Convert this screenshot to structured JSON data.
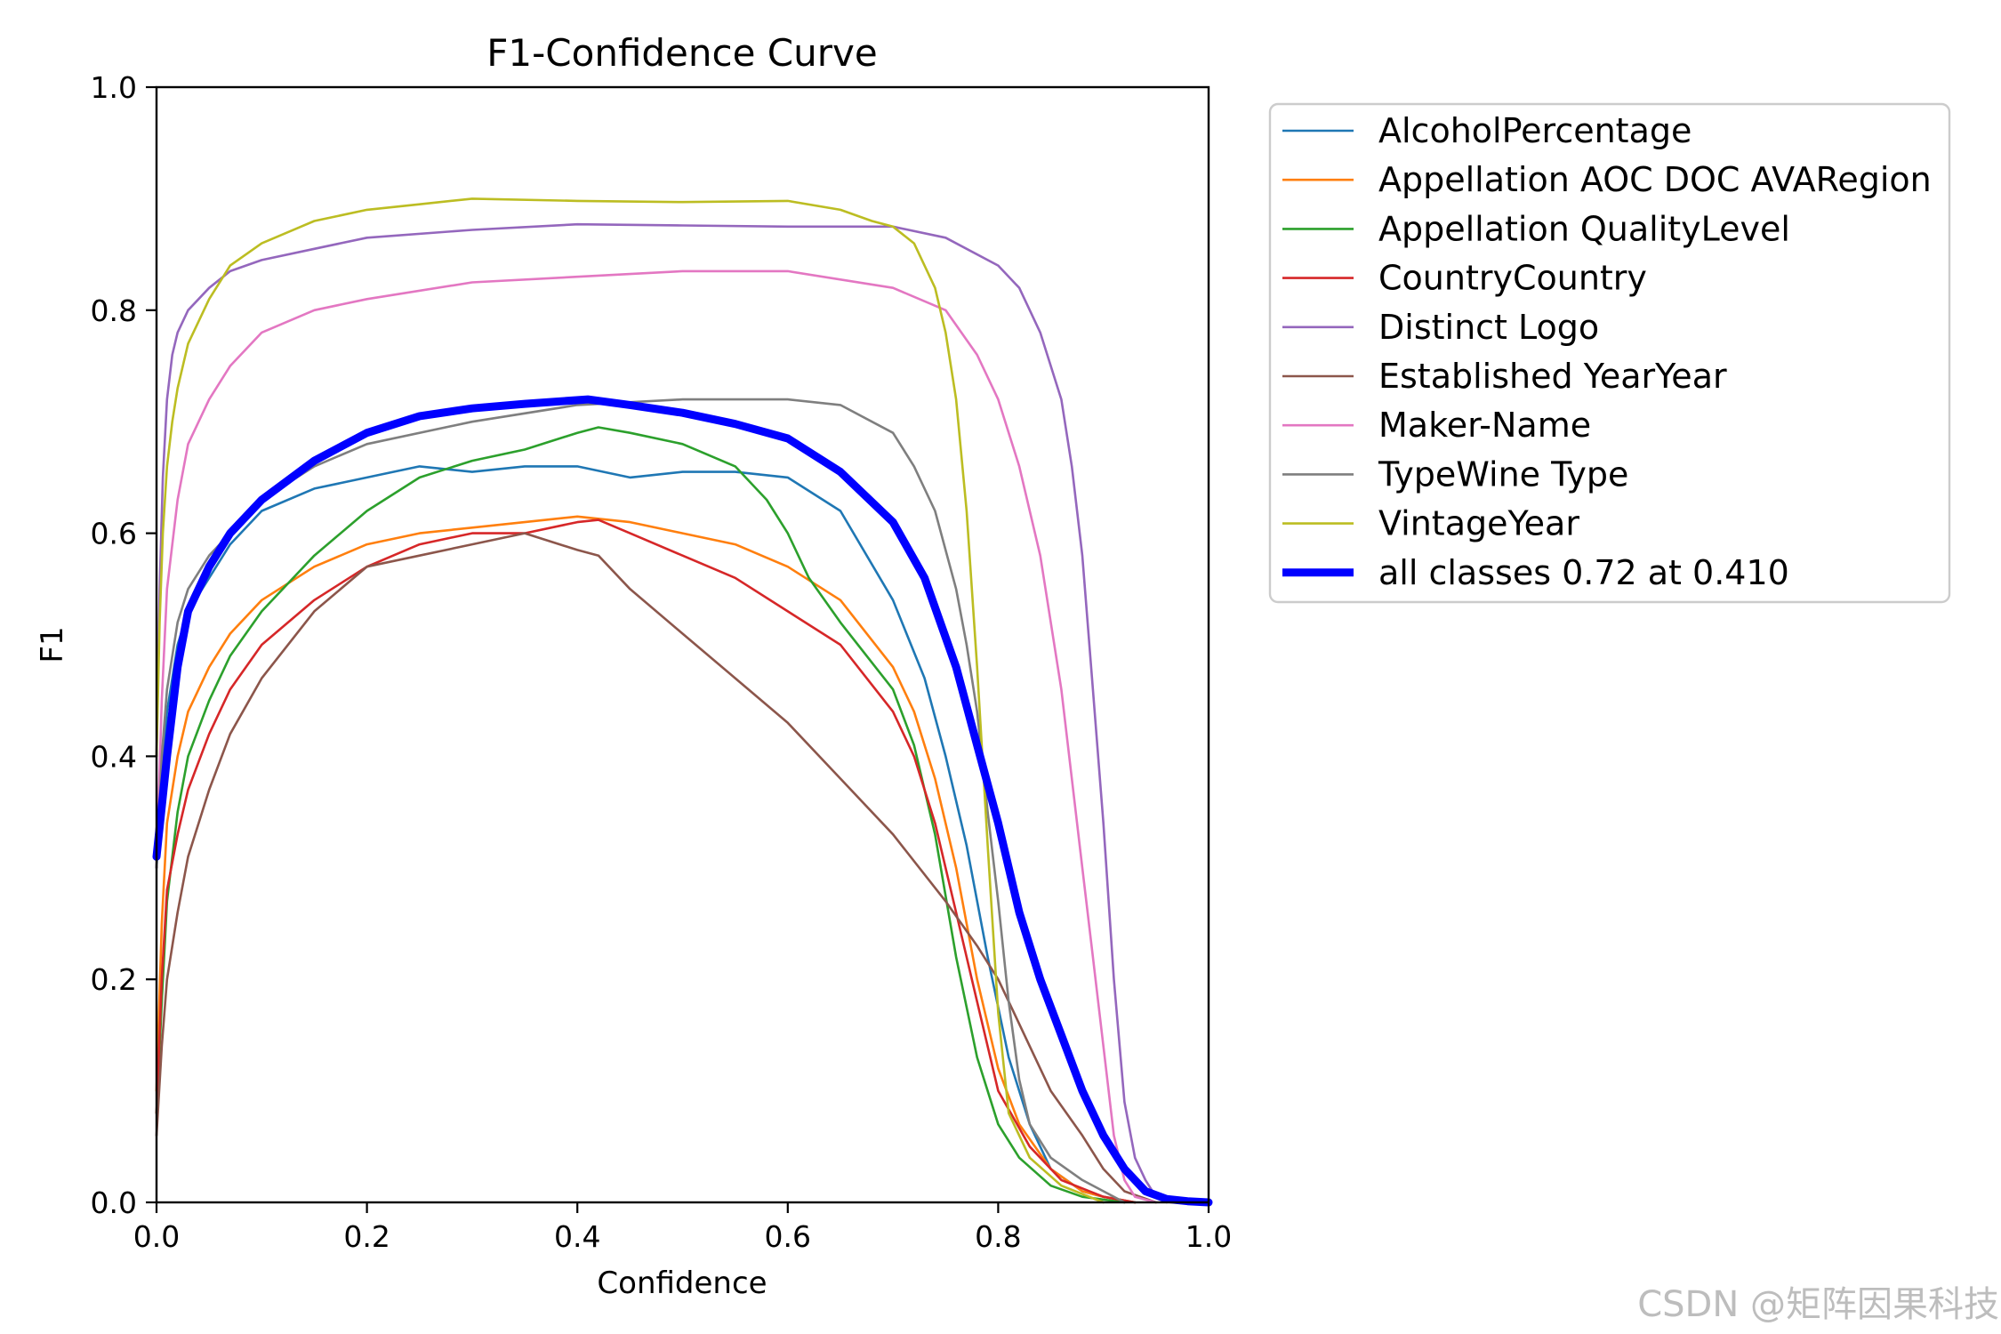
{
  "chart_data": {
    "type": "line",
    "title": "F1-Confidence Curve",
    "xlabel": "Confidence",
    "ylabel": "F1",
    "xlim": [
      0.0,
      1.0
    ],
    "ylim": [
      0.0,
      1.0
    ],
    "xticks": [
      "0.0",
      "0.2",
      "0.4",
      "0.6",
      "0.8",
      "1.0"
    ],
    "yticks": [
      "0.0",
      "0.2",
      "0.4",
      "0.6",
      "0.8",
      "1.0"
    ],
    "grid": false,
    "legend_position": "outside-top-right",
    "series": [
      {
        "name": "AlcoholPercentage",
        "color": "#1f77b4",
        "bold": false,
        "x": [
          0,
          0.005,
          0.01,
          0.02,
          0.03,
          0.05,
          0.07,
          0.1,
          0.15,
          0.2,
          0.25,
          0.3,
          0.35,
          0.4,
          0.45,
          0.5,
          0.55,
          0.6,
          0.65,
          0.7,
          0.73,
          0.75,
          0.77,
          0.79,
          0.81,
          0.83,
          0.85,
          0.88,
          0.9,
          0.93
        ],
        "y": [
          0.3,
          0.38,
          0.44,
          0.5,
          0.53,
          0.56,
          0.59,
          0.62,
          0.64,
          0.65,
          0.66,
          0.655,
          0.66,
          0.66,
          0.65,
          0.655,
          0.655,
          0.65,
          0.62,
          0.54,
          0.47,
          0.4,
          0.32,
          0.22,
          0.13,
          0.07,
          0.03,
          0.01,
          0.005,
          0.0
        ]
      },
      {
        "name": "Appellation AOC DOC AVARegion",
        "color": "#ff7f0e",
        "bold": false,
        "x": [
          0,
          0.005,
          0.01,
          0.02,
          0.03,
          0.05,
          0.07,
          0.1,
          0.15,
          0.2,
          0.25,
          0.3,
          0.35,
          0.4,
          0.45,
          0.5,
          0.55,
          0.6,
          0.65,
          0.7,
          0.72,
          0.74,
          0.76,
          0.78,
          0.8,
          0.82,
          0.85,
          0.88,
          0.9,
          0.93
        ],
        "y": [
          0.1,
          0.25,
          0.34,
          0.4,
          0.44,
          0.48,
          0.51,
          0.54,
          0.57,
          0.59,
          0.6,
          0.605,
          0.61,
          0.615,
          0.61,
          0.6,
          0.59,
          0.57,
          0.54,
          0.48,
          0.44,
          0.38,
          0.3,
          0.2,
          0.12,
          0.07,
          0.03,
          0.01,
          0.005,
          0.0
        ]
      },
      {
        "name": "Appellation QualityLevel",
        "color": "#2ca02c",
        "bold": false,
        "x": [
          0,
          0.005,
          0.01,
          0.02,
          0.03,
          0.05,
          0.07,
          0.1,
          0.15,
          0.2,
          0.25,
          0.3,
          0.35,
          0.4,
          0.42,
          0.45,
          0.5,
          0.55,
          0.58,
          0.6,
          0.62,
          0.65,
          0.7,
          0.72,
          0.74,
          0.76,
          0.78,
          0.8,
          0.82,
          0.85,
          0.88,
          0.92
        ],
        "y": [
          0.08,
          0.18,
          0.27,
          0.35,
          0.4,
          0.45,
          0.49,
          0.53,
          0.58,
          0.62,
          0.65,
          0.665,
          0.675,
          0.69,
          0.695,
          0.69,
          0.68,
          0.66,
          0.63,
          0.6,
          0.56,
          0.52,
          0.46,
          0.41,
          0.33,
          0.22,
          0.13,
          0.07,
          0.04,
          0.015,
          0.005,
          0.0
        ]
      },
      {
        "name": "CountryCountry",
        "color": "#d62728",
        "bold": false,
        "x": [
          0,
          0.005,
          0.01,
          0.02,
          0.03,
          0.05,
          0.07,
          0.1,
          0.15,
          0.2,
          0.25,
          0.3,
          0.35,
          0.4,
          0.42,
          0.45,
          0.5,
          0.55,
          0.6,
          0.65,
          0.7,
          0.72,
          0.74,
          0.76,
          0.78,
          0.8,
          0.83,
          0.86,
          0.9,
          0.93
        ],
        "y": [
          0.08,
          0.2,
          0.28,
          0.33,
          0.37,
          0.42,
          0.46,
          0.5,
          0.54,
          0.57,
          0.59,
          0.6,
          0.6,
          0.61,
          0.612,
          0.6,
          0.58,
          0.56,
          0.53,
          0.5,
          0.44,
          0.4,
          0.34,
          0.26,
          0.18,
          0.1,
          0.05,
          0.02,
          0.005,
          0.0
        ]
      },
      {
        "name": "Distinct Logo",
        "color": "#9467bd",
        "bold": false,
        "x": [
          0,
          0.003,
          0.006,
          0.01,
          0.015,
          0.02,
          0.03,
          0.05,
          0.07,
          0.1,
          0.15,
          0.2,
          0.3,
          0.4,
          0.5,
          0.6,
          0.7,
          0.75,
          0.8,
          0.82,
          0.84,
          0.86,
          0.87,
          0.88,
          0.89,
          0.9,
          0.91,
          0.92,
          0.93,
          0.94,
          0.95,
          0.96
        ],
        "y": [
          0.4,
          0.55,
          0.65,
          0.72,
          0.76,
          0.78,
          0.8,
          0.82,
          0.835,
          0.845,
          0.855,
          0.865,
          0.872,
          0.877,
          0.876,
          0.875,
          0.875,
          0.865,
          0.84,
          0.82,
          0.78,
          0.72,
          0.66,
          0.58,
          0.46,
          0.34,
          0.2,
          0.09,
          0.04,
          0.02,
          0.005,
          0.0
        ]
      },
      {
        "name": "Established YearYear",
        "color": "#8c564b",
        "bold": false,
        "x": [
          0,
          0.005,
          0.01,
          0.02,
          0.03,
          0.05,
          0.07,
          0.1,
          0.15,
          0.2,
          0.25,
          0.3,
          0.35,
          0.4,
          0.42,
          0.45,
          0.5,
          0.55,
          0.6,
          0.65,
          0.7,
          0.75,
          0.78,
          0.8,
          0.82,
          0.85,
          0.88,
          0.9,
          0.92,
          0.95
        ],
        "y": [
          0.06,
          0.14,
          0.2,
          0.26,
          0.31,
          0.37,
          0.42,
          0.47,
          0.53,
          0.57,
          0.58,
          0.59,
          0.6,
          0.585,
          0.58,
          0.55,
          0.51,
          0.47,
          0.43,
          0.38,
          0.33,
          0.27,
          0.23,
          0.2,
          0.16,
          0.1,
          0.06,
          0.03,
          0.01,
          0.0
        ]
      },
      {
        "name": "Maker-Name",
        "color": "#e377c2",
        "bold": false,
        "x": [
          0,
          0.005,
          0.01,
          0.02,
          0.03,
          0.05,
          0.07,
          0.1,
          0.15,
          0.2,
          0.3,
          0.4,
          0.5,
          0.6,
          0.7,
          0.75,
          0.78,
          0.8,
          0.82,
          0.84,
          0.86,
          0.87,
          0.88,
          0.89,
          0.9,
          0.91,
          0.92,
          0.93,
          0.95
        ],
        "y": [
          0.3,
          0.45,
          0.55,
          0.63,
          0.68,
          0.72,
          0.75,
          0.78,
          0.8,
          0.81,
          0.825,
          0.83,
          0.835,
          0.835,
          0.82,
          0.8,
          0.76,
          0.72,
          0.66,
          0.58,
          0.46,
          0.38,
          0.3,
          0.22,
          0.14,
          0.06,
          0.02,
          0.005,
          0.0
        ]
      },
      {
        "name": "TypeWine Type",
        "color": "#7f7f7f",
        "bold": false,
        "x": [
          0,
          0.005,
          0.01,
          0.02,
          0.03,
          0.05,
          0.07,
          0.1,
          0.15,
          0.2,
          0.3,
          0.4,
          0.5,
          0.6,
          0.65,
          0.7,
          0.72,
          0.74,
          0.76,
          0.77,
          0.78,
          0.79,
          0.8,
          0.81,
          0.82,
          0.83,
          0.85,
          0.88,
          0.92
        ],
        "y": [
          0.3,
          0.4,
          0.46,
          0.52,
          0.55,
          0.58,
          0.6,
          0.63,
          0.66,
          0.68,
          0.7,
          0.715,
          0.72,
          0.72,
          0.715,
          0.69,
          0.66,
          0.62,
          0.55,
          0.5,
          0.44,
          0.35,
          0.27,
          0.18,
          0.11,
          0.07,
          0.04,
          0.02,
          0.0
        ]
      },
      {
        "name": "VintageYear",
        "color": "#bcbd22",
        "bold": false,
        "x": [
          0,
          0.003,
          0.006,
          0.01,
          0.015,
          0.02,
          0.03,
          0.05,
          0.07,
          0.1,
          0.15,
          0.2,
          0.25,
          0.3,
          0.4,
          0.5,
          0.6,
          0.65,
          0.68,
          0.7,
          0.72,
          0.74,
          0.75,
          0.76,
          0.77,
          0.78,
          0.79,
          0.8,
          0.81,
          0.83,
          0.86,
          0.9
        ],
        "y": [
          0.4,
          0.52,
          0.6,
          0.66,
          0.7,
          0.73,
          0.77,
          0.81,
          0.84,
          0.86,
          0.88,
          0.89,
          0.895,
          0.9,
          0.898,
          0.897,
          0.898,
          0.89,
          0.88,
          0.875,
          0.86,
          0.82,
          0.78,
          0.72,
          0.62,
          0.48,
          0.32,
          0.17,
          0.08,
          0.04,
          0.015,
          0.0
        ]
      },
      {
        "name": "all classes 0.72 at 0.410",
        "color": "#0000ff",
        "bold": true,
        "x": [
          0,
          0.01,
          0.02,
          0.03,
          0.05,
          0.07,
          0.1,
          0.15,
          0.2,
          0.25,
          0.3,
          0.35,
          0.41,
          0.45,
          0.5,
          0.55,
          0.6,
          0.65,
          0.7,
          0.73,
          0.76,
          0.78,
          0.8,
          0.82,
          0.84,
          0.86,
          0.88,
          0.9,
          0.92,
          0.94,
          0.96,
          0.98,
          1.0
        ],
        "y": [
          0.31,
          0.4,
          0.48,
          0.53,
          0.57,
          0.6,
          0.63,
          0.665,
          0.69,
          0.705,
          0.712,
          0.716,
          0.72,
          0.715,
          0.708,
          0.698,
          0.685,
          0.655,
          0.61,
          0.56,
          0.48,
          0.41,
          0.34,
          0.26,
          0.2,
          0.15,
          0.1,
          0.06,
          0.03,
          0.01,
          0.003,
          0.001,
          0.0
        ]
      }
    ]
  },
  "watermark": "CSDN @矩阵因果科技"
}
